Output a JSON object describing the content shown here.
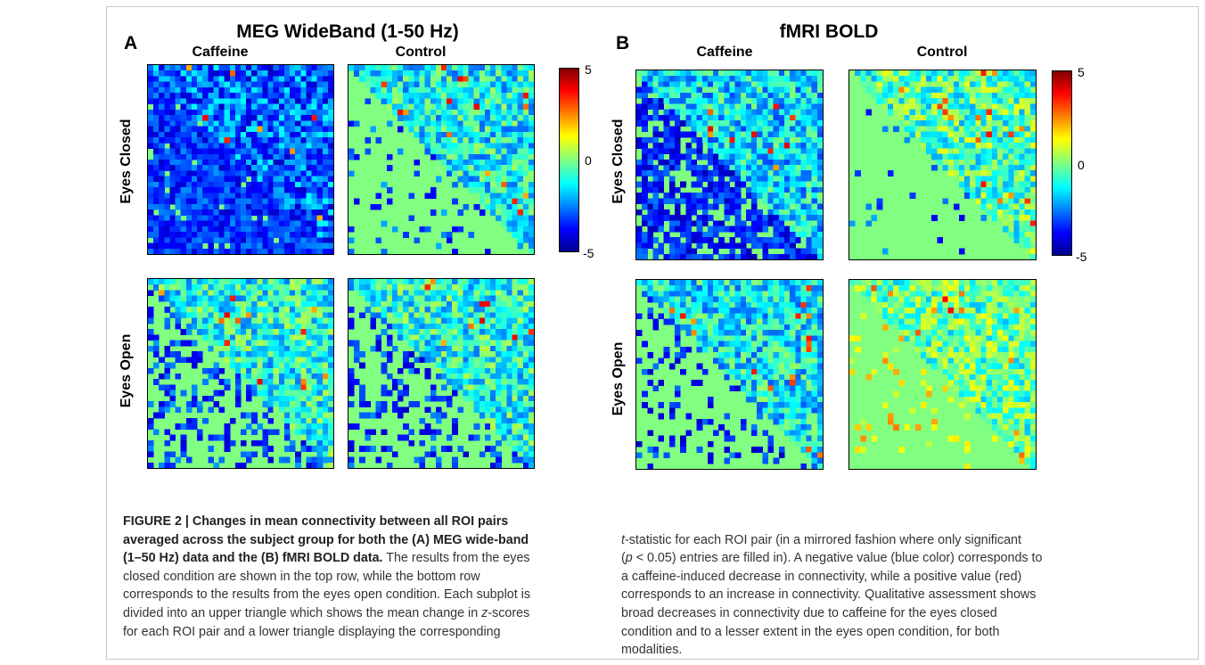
{
  "figure": {
    "panels": [
      {
        "letter": "A",
        "title": "MEG WideBand (1-50 Hz)",
        "columns": [
          "Caffeine",
          "Control"
        ],
        "rows": [
          "Eyes Closed",
          "Eyes Open"
        ]
      },
      {
        "letter": "B",
        "title": "fMRI BOLD",
        "columns": [
          "Caffeine",
          "Control"
        ],
        "rows": [
          "Eyes Closed",
          "Eyes Open"
        ]
      }
    ],
    "colorbar": {
      "ticks": [
        "5",
        "0",
        "-5"
      ],
      "colormap": "jet",
      "range": [
        -5,
        5
      ]
    }
  },
  "caption": {
    "lead": "FIGURE 2 | Changes in mean connectivity between all ROI pairs averaged across the subject group for both the (A) MEG wide-band (1–50 Hz) data and the (B) fMRI BOLD data.",
    "left_lines": [
      "FIGURE 2 | Changes in mean connectivity between all ROI pairs",
      "averaged across the subject group for both the (A) MEG wide-band",
      "(1–50 Hz) data and the (B) fMRI BOLD data.",
      " The results from the eyes",
      "closed condition are shown in the top row, while the bottom row",
      "corresponds to the results from the eyes open condition. Each subplot is",
      "divided into an upper triangle which shows the mean change in ",
      "z",
      "-scores",
      "for each ROI pair and a lower triangle displaying the corresponding"
    ],
    "right_lines": [
      "t",
      "-statistic for each ROI pair (in a mirrored fashion where only significant",
      "(",
      "p",
      " < 0.05) entries are filled in). A negative value (blue color) corresponds to",
      "a caffeine-induced decrease in connectivity, while a positive value (red)",
      "corresponds to an increase in connectivity. Qualitative assessment shows",
      "broad decreases in connectivity due to caffeine for the eyes closed",
      "condition and to a lesser extent in the eyes open condition, for both",
      "modalities."
    ]
  }
}
